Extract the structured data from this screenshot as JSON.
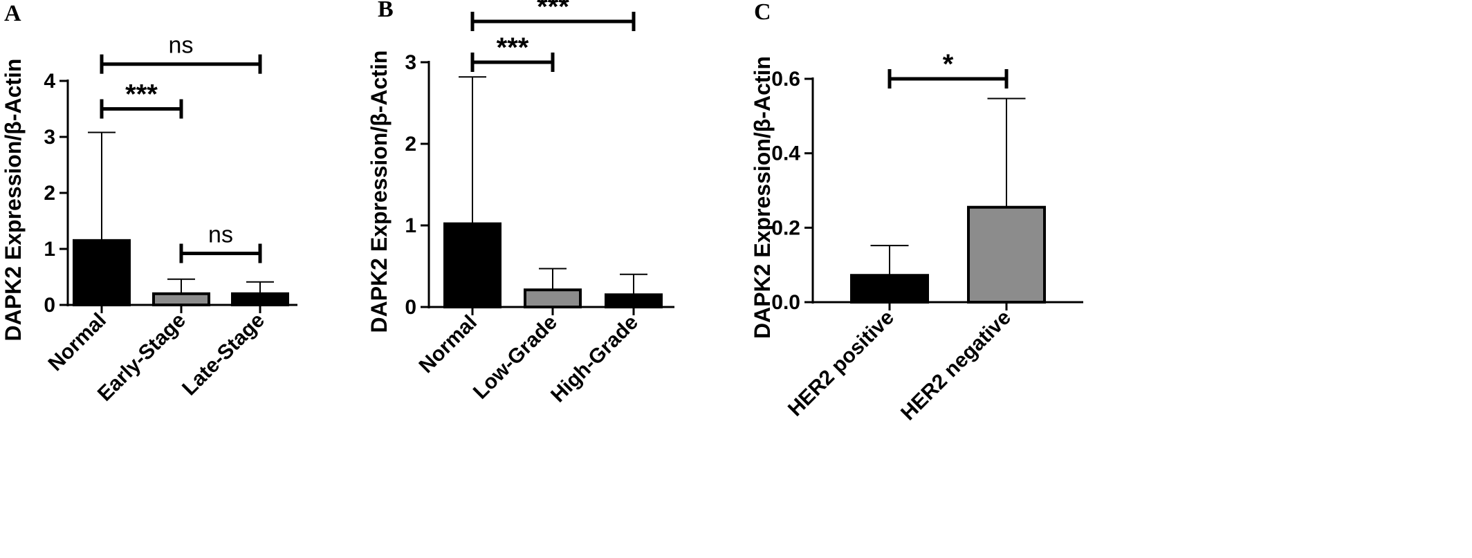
{
  "chart_data": [
    {
      "panel": "A",
      "type": "bar",
      "ylabel": "DAPK2 Expression/β-Actin",
      "ylim": [
        0,
        4
      ],
      "yticks": [
        0,
        1,
        2,
        3,
        4
      ],
      "categories": [
        "Normal",
        "Early-Stage",
        "Late-Stage"
      ],
      "values": [
        1.15,
        0.2,
        0.2
      ],
      "errors": [
        1.93,
        0.26,
        0.21
      ],
      "bar_colors": [
        "#000000",
        "#8c8c8c",
        "#000000"
      ],
      "significance": [
        {
          "from": 0,
          "to": 1,
          "label": "***",
          "level": 3.5
        },
        {
          "from": 0,
          "to": 2,
          "label": "ns",
          "level": 4.3
        },
        {
          "from": 1,
          "to": 2,
          "label": "ns",
          "level": 0.92
        }
      ]
    },
    {
      "panel": "B",
      "type": "bar",
      "ylabel": "DAPK2 Expression/β-Actin",
      "ylim": [
        0,
        3
      ],
      "yticks": [
        0,
        1,
        2,
        3
      ],
      "categories": [
        "Normal",
        "Low-Grade",
        "High-Grade"
      ],
      "values": [
        1.02,
        0.21,
        0.15
      ],
      "errors": [
        1.8,
        0.26,
        0.25
      ],
      "bar_colors": [
        "#000000",
        "#8c8c8c",
        "#000000"
      ],
      "significance": [
        {
          "from": 0,
          "to": 1,
          "label": "***",
          "level": 3.0
        },
        {
          "from": 0,
          "to": 2,
          "label": "***",
          "level": 3.5
        }
      ]
    },
    {
      "panel": "C",
      "type": "bar",
      "ylabel": "DAPK2 Expression/β-Actin",
      "ylim": [
        0,
        0.6
      ],
      "yticks": [
        "0.0",
        "0.2",
        "0.4",
        "0.6"
      ],
      "categories": [
        "HER2 positive",
        "HER2 negative"
      ],
      "values": [
        0.072,
        0.255
      ],
      "errors": [
        0.08,
        0.292
      ],
      "bar_colors": [
        "#000000",
        "#8c8c8c"
      ],
      "significance": [
        {
          "from": 0,
          "to": 1,
          "label": "*",
          "level": 0.6
        }
      ]
    }
  ]
}
